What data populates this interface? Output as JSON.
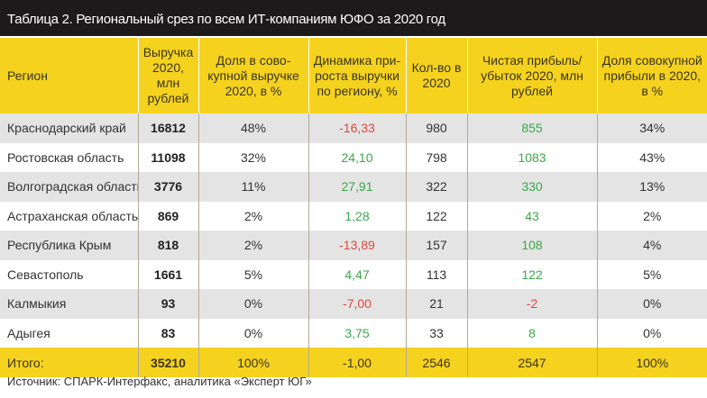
{
  "title": "Таблица 2. Региональный срез по всем ИТ-компаниям ЮФО за 2020 год",
  "colors": {
    "header_bg": "#f5d21e",
    "title_bg": "#1c1a1a",
    "negative": "#e2473e",
    "positive": "#3aa84a"
  },
  "headers": [
    "Регион",
    "Выручка 2020, млн рублей",
    "Доля в сово-купной выручке 2020, в %",
    "Динамика при-роста выручки по региону, %",
    "Кол-во в 2020",
    "Чистая прибыль/убыток 2020, млн рублей",
    "Доля совокупной прибыли в 2020, в %"
  ],
  "rows": [
    [
      "Краснодарский край",
      "16812",
      "48%",
      "-16,33",
      "980",
      "855",
      "34%"
    ],
    [
      "Ростовская область",
      "11098",
      "32%",
      "24,10",
      "798",
      "1083",
      "43%"
    ],
    [
      "Волгоградская область",
      "3776",
      "11%",
      "27,91",
      "322",
      "330",
      "13%"
    ],
    [
      "Астраханская область",
      "869",
      "2%",
      "1,28",
      "122",
      "43",
      "2%"
    ],
    [
      "Республика Крым",
      "818",
      "2%",
      "-13,89",
      "157",
      "108",
      "4%"
    ],
    [
      "Севастополь",
      "1661",
      "5%",
      "4,47",
      "113",
      "122",
      "5%"
    ],
    [
      "Калмыкия",
      "93",
      "0%",
      "-7,00",
      "21",
      "-2",
      "0%"
    ],
    [
      "Адыгея",
      "83",
      "0%",
      "3,75",
      "33",
      "8",
      "0%"
    ]
  ],
  "total": [
    "Итого:",
    "35210",
    "100%",
    "-1,00",
    "2546",
    "2547",
    "100%"
  ],
  "source": "Источник: СПАРК-Интерфакс, аналитика «Эксперт ЮГ»"
}
